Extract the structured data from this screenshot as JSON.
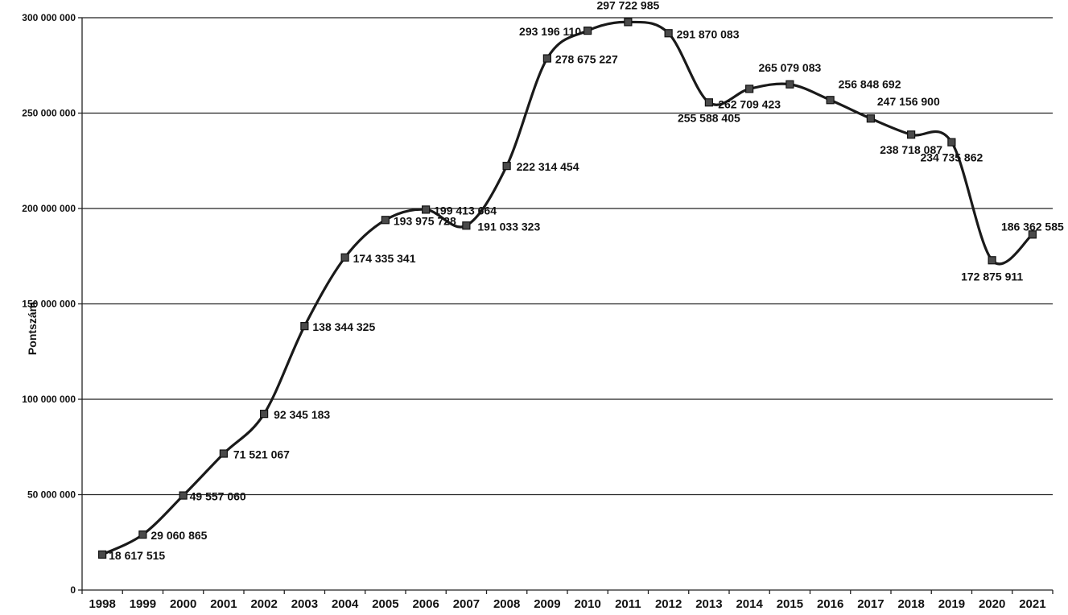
{
  "chart_data": {
    "type": "line",
    "title": "",
    "xlabel": "",
    "ylabel": "Pontszám",
    "ylim": [
      0,
      300000000
    ],
    "y_ticks": [
      0,
      50000000,
      100000000,
      150000000,
      200000000,
      250000000,
      300000000
    ],
    "y_tick_labels": [
      "0",
      "50 000 000",
      "100 000 000",
      "150 000 000",
      "200 000 000",
      "250 000 000",
      "300 000 000"
    ],
    "grid": true,
    "legend": "none",
    "categories": [
      "1998",
      "1999",
      "2000",
      "2001",
      "2002",
      "2003",
      "2004",
      "2005",
      "2006",
      "2007",
      "2008",
      "2009",
      "2010",
      "2011",
      "2012",
      "2013",
      "2014",
      "2015",
      "2016",
      "2017",
      "2018",
      "2019",
      "2020",
      "2021"
    ],
    "series": [
      {
        "values": [
          18617515,
          29060865,
          49557060,
          71521067,
          92345183,
          138344325,
          174335341,
          193975728,
          199413664,
          191033323,
          222314454,
          278675227,
          293196110,
          297722985,
          291870083,
          255588405,
          262709423,
          265079083,
          256848692,
          247156900,
          238718087,
          234735862,
          172875911,
          186362585
        ],
        "labels": [
          "18 617 515",
          "29 060 865",
          "49 557 060",
          "71 521 067",
          "92 345 183",
          "138 344 325",
          "174 335 341",
          "193 975 728",
          "199 413 664",
          "191 033 323",
          "222 314 454",
          "278 675 227",
          "293 196 110",
          "297 722 985",
          "291 870 083",
          "255 588 405",
          "262 709 423",
          "265 079 083",
          "256 848 692",
          "247 156 900",
          "238 718 087",
          "234 735 862",
          "172 875 911",
          "186 362 585"
        ],
        "color": "#1a1a1a",
        "marker": "square"
      }
    ]
  }
}
